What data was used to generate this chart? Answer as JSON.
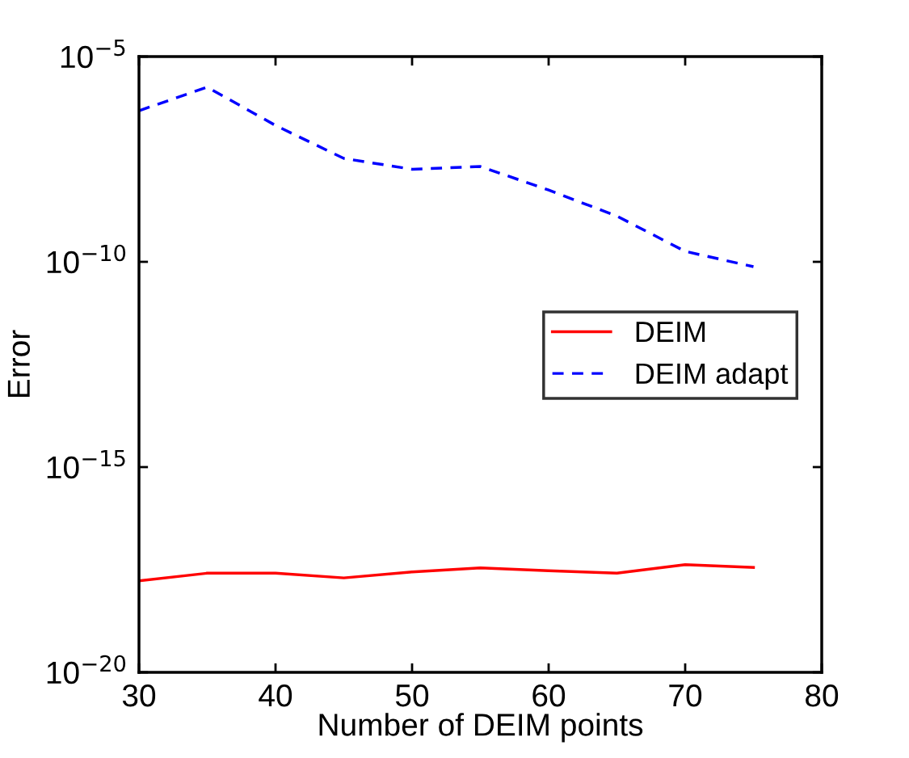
{
  "chart_data": {
    "type": "line",
    "xlabel": "Number of DEIM points",
    "ylabel": "Error",
    "x": [
      30,
      35,
      40,
      45,
      50,
      55,
      60,
      65,
      70,
      75
    ],
    "series": [
      {
        "name": "DEIM",
        "color": "#ff0000",
        "line_style": "solid",
        "values": [
          1.7e-18,
          2.6e-18,
          2.6e-18,
          2e-18,
          2.8e-18,
          3.5e-18,
          3e-18,
          2.6e-18,
          4.2e-18,
          3.6e-18
        ]
      },
      {
        "name": "DEIM adapt",
        "color": "#0000ff",
        "line_style": "dashed",
        "values": [
          4.8e-07,
          1.8e-06,
          2.1e-07,
          3.3e-08,
          1.8e-08,
          2.1e-08,
          5.6e-09,
          1.3e-09,
          1.8e-10,
          7.6e-11
        ]
      }
    ],
    "log": "y",
    "xlim": [
      30,
      80
    ],
    "xticks": [
      30,
      40,
      50,
      60,
      70,
      80
    ],
    "ylim": [
      1e-20,
      1e-05
    ],
    "yticks": [
      {
        "value": 1e-20,
        "label": "10$^{−20}$"
      },
      {
        "value": 1e-15,
        "label": "10$^{−15}$"
      },
      {
        "value": 1e-10,
        "label": "10$^{−10}$"
      },
      {
        "value": 1e-05,
        "label": "10$^{−5}$"
      }
    ],
    "grid": false,
    "legend": "right",
    "marker": "none"
  }
}
